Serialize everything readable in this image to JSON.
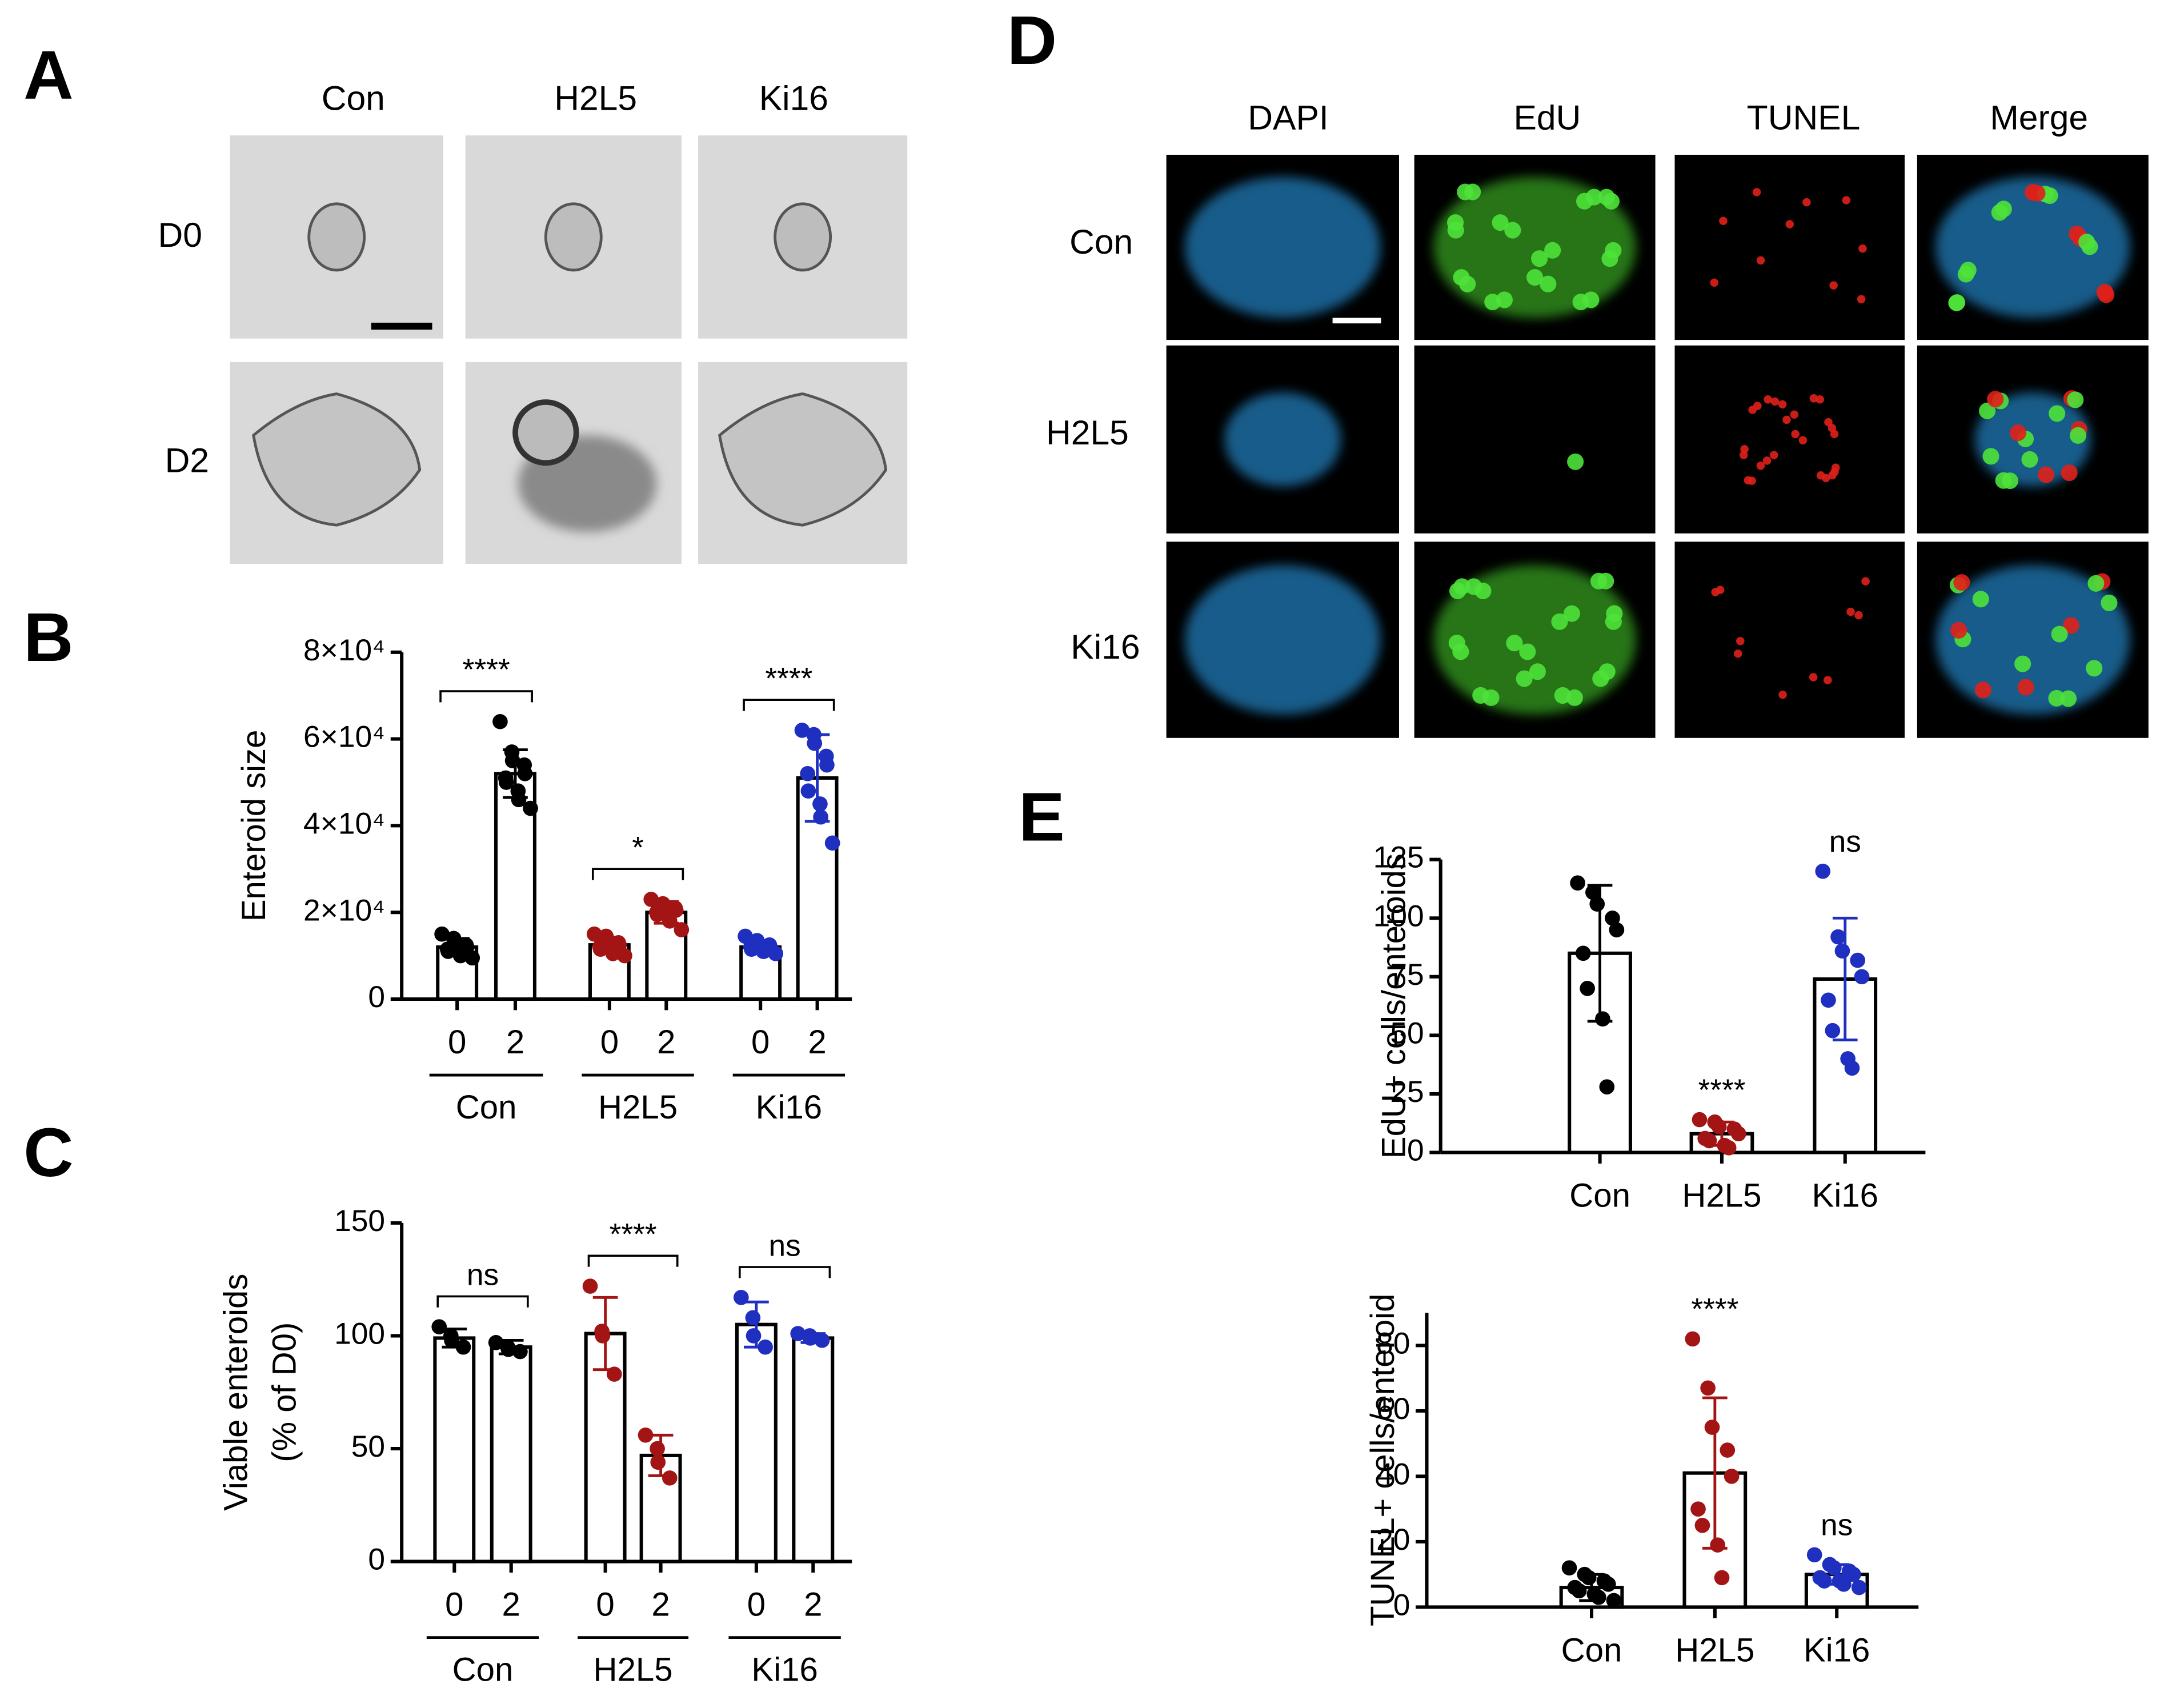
{
  "panel_labels": [
    "A",
    "B",
    "C",
    "D",
    "E"
  ],
  "panel_a": {
    "columns": [
      "Con",
      "H2L5",
      "Ki16"
    ],
    "rows": [
      "D0",
      "D2"
    ]
  },
  "panel_d": {
    "columns": [
      "DAPI",
      "EdU",
      "TUNEL",
      "Merge"
    ],
    "rows": [
      "Con",
      "H2L5",
      "Ki16"
    ]
  },
  "chart_data": [
    {
      "type": "bar",
      "ylabel": [
        "Enteroid size"
      ],
      "categories": [
        "0",
        "2",
        "0",
        "2",
        "0",
        "2"
      ],
      "groups": [
        "Con",
        "H2L5",
        "Ki16"
      ],
      "values": [
        12000,
        52000,
        12500,
        20000,
        12000,
        51000
      ],
      "errors": [
        2000,
        5500,
        1800,
        2500,
        1200,
        10000
      ],
      "point_colors": [
        "#000000",
        "#000000",
        "#a31515",
        "#a31515",
        "#1f2fbf",
        "#1f2fbf"
      ],
      "points": [
        [
          15000,
          14000,
          13000,
          12500,
          12000,
          11500,
          11000,
          10500,
          10000,
          9500
        ],
        [
          64000,
          57000,
          55000,
          54000,
          52000,
          51000,
          50000,
          48000,
          46000,
          44000
        ],
        [
          15000,
          14500,
          14000,
          13000,
          12500,
          12000,
          11500,
          11000,
          10500,
          10000
        ],
        [
          23000,
          22000,
          21500,
          21000,
          20500,
          20000,
          19500,
          19000,
          18000,
          16000
        ],
        [
          14500,
          13500,
          13000,
          12500,
          12000,
          12000,
          11500,
          11000,
          11000,
          10500
        ],
        [
          62000,
          61000,
          59000,
          56000,
          54000,
          52000,
          48000,
          45000,
          42000,
          36000
        ]
      ],
      "annotations": [
        "****",
        "*",
        "****"
      ],
      "ylim": [
        0,
        80000
      ],
      "yticks": [
        0,
        {
          "value": 20000,
          "label": "2×10⁴"
        },
        {
          "value": 40000,
          "label": "4×10⁴"
        },
        {
          "value": 60000,
          "label": "6×10⁴"
        },
        {
          "value": 80000,
          "label": "8×10⁴"
        }
      ]
    },
    {
      "type": "bar",
      "ylabel": [
        "Viable enteroids",
        "(% of D0)"
      ],
      "categories": [
        "0",
        "2",
        "0",
        "2",
        "0",
        "2"
      ],
      "groups": [
        "Con",
        "H2L5",
        "Ki16"
      ],
      "values": [
        99,
        95,
        101,
        47,
        105,
        99
      ],
      "errors": [
        4,
        3,
        16,
        9,
        10,
        2
      ],
      "point_colors": [
        "#000000",
        "#000000",
        "#a31515",
        "#a31515",
        "#1f2fbf",
        "#1f2fbf"
      ],
      "points": [
        [
          104,
          100,
          98,
          95
        ],
        [
          97,
          95,
          94,
          93
        ],
        [
          122,
          102,
          100,
          83
        ],
        [
          56,
          50,
          44,
          37
        ],
        [
          117,
          108,
          100,
          95
        ],
        [
          101,
          100,
          99,
          98
        ]
      ],
      "annotations": [
        "ns",
        "****",
        "ns"
      ],
      "ylim": [
        0,
        150
      ],
      "yticks": [
        0,
        50,
        100,
        150
      ]
    },
    {
      "type": "bar",
      "ylabel": [
        "EdU+ cells/enteroids"
      ],
      "categories": [
        "Con",
        "H2L5",
        "Ki16"
      ],
      "values": [
        85,
        8,
        74
      ],
      "errors": [
        29,
        5,
        26
      ],
      "point_colors": [
        "#000000",
        "#a31515",
        "#1f2fbf"
      ],
      "points": [
        [
          115,
          111,
          106,
          100,
          95,
          85,
          70,
          57,
          28
        ],
        [
          14,
          13,
          11,
          10,
          8,
          6,
          5,
          3,
          2
        ],
        [
          120,
          92,
          86,
          82,
          75,
          65,
          52,
          40,
          36
        ]
      ],
      "annotations": [
        null,
        "****",
        "ns"
      ],
      "ylim": [
        0,
        125
      ],
      "yticks": [
        0,
        25,
        50,
        75,
        100,
        125
      ]
    },
    {
      "type": "bar",
      "ylabel": [
        "TUNEL+ cells/enteroid"
      ],
      "categories": [
        "Con",
        "H2L5",
        "Ki16"
      ],
      "values": [
        6,
        41,
        10
      ],
      "errors": [
        4,
        23,
        3
      ],
      "point_colors": [
        "#000000",
        "#a31515",
        "#1f2fbf"
      ],
      "points": [
        [
          12,
          10,
          9,
          8,
          7,
          6,
          5,
          4,
          3,
          2
        ],
        [
          82,
          67,
          55,
          48,
          40,
          30,
          25,
          19,
          9
        ],
        [
          16,
          13,
          12,
          11,
          10,
          9,
          8,
          8,
          7,
          6
        ]
      ],
      "annotations": [
        null,
        "****",
        "ns"
      ],
      "ylim": [
        0,
        90
      ],
      "yticks": [
        0,
        20,
        40,
        60,
        80
      ]
    }
  ]
}
